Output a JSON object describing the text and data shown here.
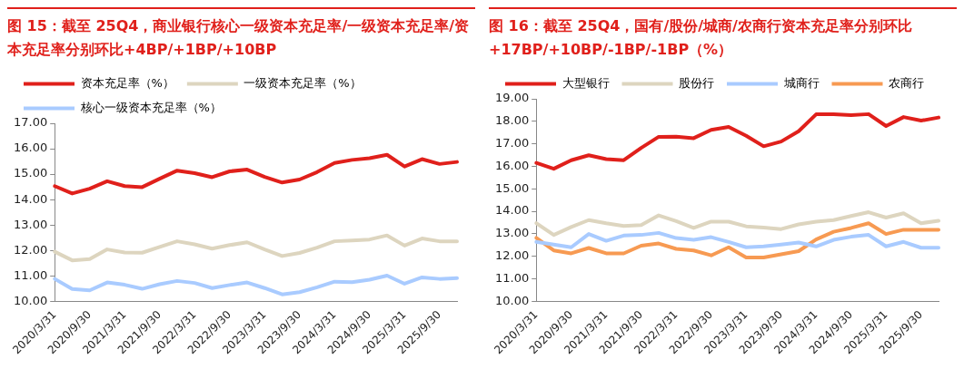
{
  "chart_data": [
    {
      "type": "line",
      "title": "图 15：截至 25Q4，商业银行核心一级资本充足率/一级资本充足率/资本充足率分别环比+4BP/+1BP/+10BP",
      "categories": [
        "2020/3/31",
        null,
        "2020/9/30",
        null,
        "2021/3/31",
        null,
        "2021/9/30",
        null,
        "2022/3/31",
        null,
        "2022/9/30",
        null,
        "2023/3/31",
        null,
        "2023/9/30",
        null,
        "2024/3/31",
        null,
        "2024/9/30",
        null,
        "2025/3/31",
        null,
        "2025/9/30",
        null
      ],
      "series": [
        {
          "name": "资本充足率（%）",
          "color": "#e0201b",
          "values": [
            14.53,
            14.24,
            14.43,
            14.72,
            14.53,
            14.49,
            14.82,
            15.14,
            15.04,
            14.88,
            15.11,
            15.18,
            14.89,
            14.67,
            14.79,
            15.08,
            15.44,
            15.56,
            15.63,
            15.76,
            15.3,
            15.59,
            15.4,
            15.48
          ]
        },
        {
          "name": "一级资本充足率（%）",
          "color": "#ddd5bf",
          "values": [
            11.95,
            11.61,
            11.66,
            12.04,
            11.92,
            11.91,
            12.14,
            12.36,
            12.24,
            12.07,
            12.21,
            12.32,
            12.04,
            11.78,
            11.9,
            12.11,
            12.36,
            12.39,
            12.43,
            12.59,
            12.19,
            12.47,
            12.36,
            12.36
          ]
        },
        {
          "name": "核心一级资本充足率（%）",
          "color": "#a9cbff",
          "values": [
            10.88,
            10.48,
            10.43,
            10.74,
            10.65,
            10.49,
            10.67,
            10.8,
            10.72,
            10.52,
            10.64,
            10.74,
            10.52,
            10.27,
            10.36,
            10.55,
            10.77,
            10.75,
            10.85,
            11.01,
            10.69,
            10.94,
            10.88,
            10.91
          ]
        }
      ],
      "ylim": [
        10,
        17
      ],
      "yticks": [
        {
          "value": 10,
          "label": "10.00"
        },
        {
          "value": 11,
          "label": "11.00"
        },
        {
          "value": 12,
          "label": "12.00"
        },
        {
          "value": 13,
          "label": "13.00"
        },
        {
          "value": 14,
          "label": "14.00"
        },
        {
          "value": 15,
          "label": "15.00"
        },
        {
          "value": 16,
          "label": "16.00"
        },
        {
          "value": 17,
          "label": "17.00"
        }
      ],
      "grid": false,
      "legend": "top",
      "marker": "none",
      "line_style": "solid"
    },
    {
      "type": "line",
      "title": "图 16：截至 25Q4，国有/股份/城商/农商行资本充足率分别环比+17BP/+10BP/-1BP/-1BP（%）",
      "categories": [
        "2020/3/31",
        null,
        "2020/9/30",
        null,
        "2021/3/31",
        null,
        "2021/9/30",
        null,
        "2022/3/31",
        null,
        "2022/9/30",
        null,
        "2023/3/31",
        null,
        "2023/9/30",
        null,
        "2024/3/31",
        null,
        "2024/9/30",
        null,
        "2025/3/31",
        null,
        "2025/9/30",
        null
      ],
      "series": [
        {
          "name": "大型银行",
          "color": "#e0201b",
          "values": [
            16.15,
            15.89,
            16.27,
            16.49,
            16.32,
            16.27,
            16.82,
            17.31,
            17.32,
            17.25,
            17.62,
            17.75,
            17.36,
            16.89,
            17.1,
            17.56,
            18.31,
            18.31,
            18.27,
            18.32,
            17.79,
            18.19,
            18.03,
            18.17
          ]
        },
        {
          "name": "股份行",
          "color": "#ddd5bf",
          "values": [
            13.47,
            12.95,
            13.3,
            13.61,
            13.47,
            13.35,
            13.39,
            13.82,
            13.56,
            13.26,
            13.54,
            13.54,
            13.33,
            13.28,
            13.21,
            13.42,
            13.54,
            13.61,
            13.79,
            13.96,
            13.72,
            13.91,
            13.47,
            13.58
          ]
        },
        {
          "name": "城商行",
          "color": "#a9cbff",
          "values": [
            12.64,
            12.52,
            12.4,
            12.99,
            12.69,
            12.92,
            12.95,
            13.04,
            12.81,
            12.73,
            12.85,
            12.64,
            12.4,
            12.44,
            12.52,
            12.61,
            12.44,
            12.73,
            12.87,
            12.95,
            12.44,
            12.64,
            12.38,
            12.38
          ]
        },
        {
          "name": "农商行",
          "color": "#f79a52",
          "values": [
            12.82,
            12.26,
            12.13,
            12.37,
            12.13,
            12.13,
            12.47,
            12.57,
            12.33,
            12.26,
            12.04,
            12.4,
            11.95,
            11.95,
            12.09,
            12.23,
            12.75,
            13.09,
            13.26,
            13.47,
            12.99,
            13.18,
            13.18,
            13.18
          ]
        }
      ],
      "ylim": [
        10,
        19
      ],
      "yticks": [
        {
          "value": 10,
          "label": "10.00"
        },
        {
          "value": 11,
          "label": "11.00"
        },
        {
          "value": 12,
          "label": "12.00"
        },
        {
          "value": 13,
          "label": "13.00"
        },
        {
          "value": 14,
          "label": "14.00"
        },
        {
          "value": 15,
          "label": "15.00"
        },
        {
          "value": 16,
          "label": "16.00"
        },
        {
          "value": 17,
          "label": "17.00"
        },
        {
          "value": 18,
          "label": "18.00"
        },
        {
          "value": 19,
          "label": "19.00"
        }
      ],
      "grid": false,
      "legend": "top",
      "marker": "none",
      "line_style": "solid"
    }
  ]
}
